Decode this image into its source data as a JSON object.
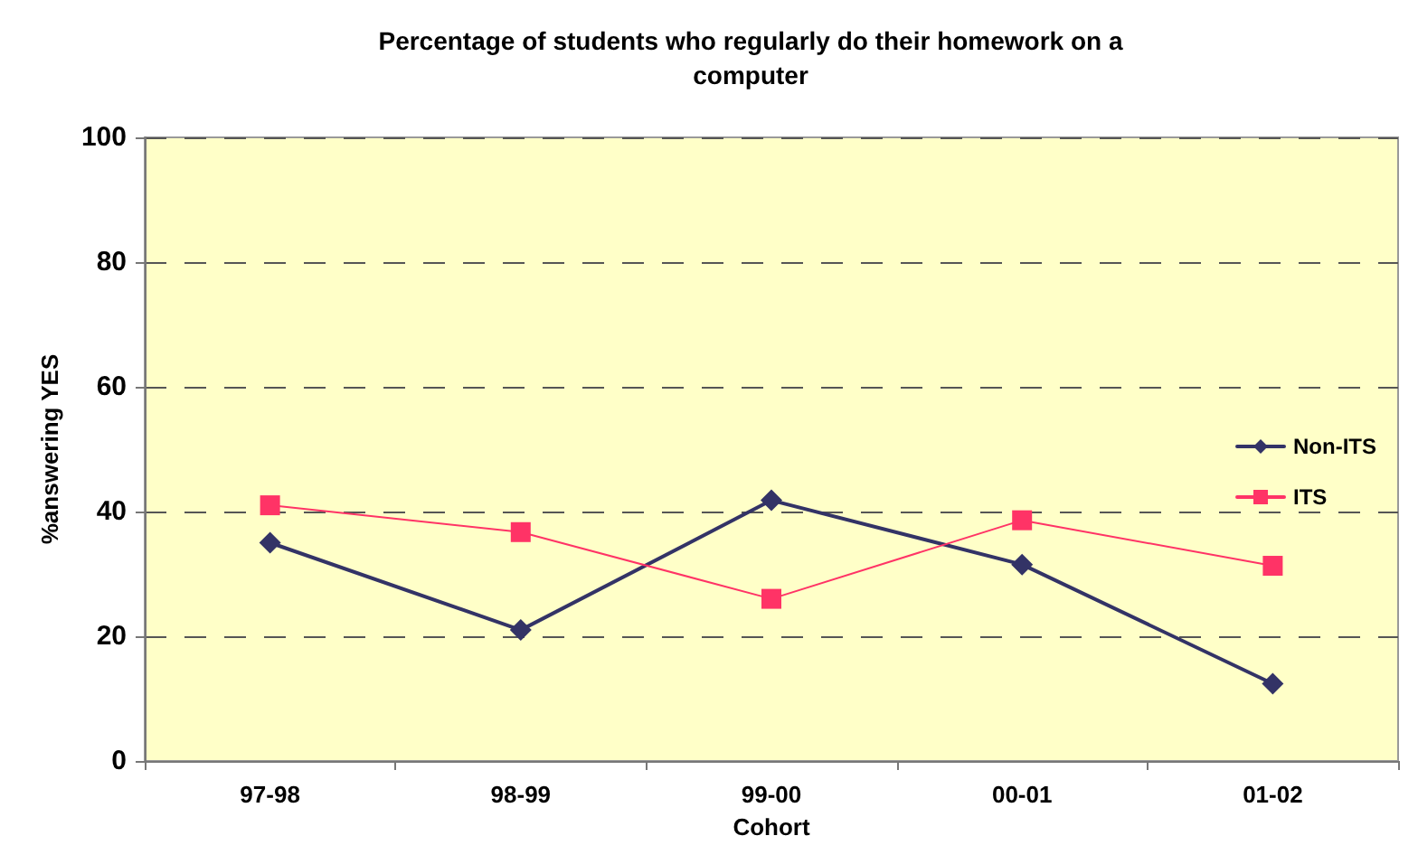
{
  "chart_data": {
    "type": "line",
    "title": "Percentage of students who regularly do their homework on a\ncomputer",
    "xlabel": "Cohort",
    "ylabel": "%answering YES",
    "categories": [
      "97-98",
      "98-99",
      "99-00",
      "00-01",
      "01-02"
    ],
    "series": [
      {
        "name": "Non-ITS",
        "color": "#333366",
        "marker": "diamond",
        "values": [
          35,
          21,
          41.8,
          31.5,
          12.4
        ]
      },
      {
        "name": "ITS",
        "color": "#ff3366",
        "marker": "square",
        "values": [
          41,
          36.7,
          26,
          38.6,
          31.3
        ]
      }
    ],
    "ylim": [
      0,
      100
    ],
    "yticks": [
      0,
      20,
      40,
      60,
      80,
      100
    ],
    "grid": "y",
    "legend": "right",
    "line_style": "solid"
  }
}
